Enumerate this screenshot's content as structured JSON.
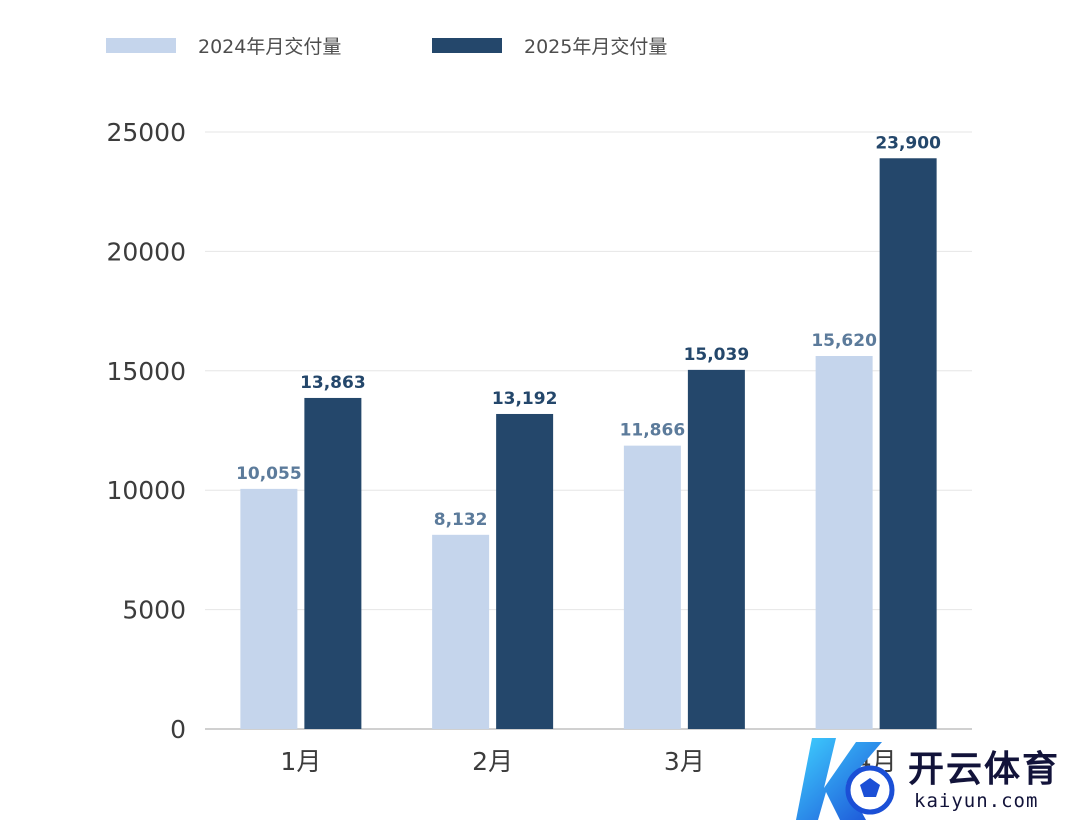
{
  "chart_data": {
    "type": "bar",
    "categories": [
      "1月",
      "2月",
      "3月",
      "4月"
    ],
    "series": [
      {
        "name": "2024年月交付量",
        "values": [
          10055,
          8132,
          11866,
          15620
        ],
        "labels": [
          "10,055",
          "8,132",
          "11,866",
          "15,620"
        ],
        "color": "#c5d5ec"
      },
      {
        "name": "2025年月交付量",
        "values": [
          13863,
          13192,
          15039,
          23900
        ],
        "labels": [
          "13,863",
          "13,192",
          "15,039",
          "23,900"
        ],
        "color": "#24476b"
      }
    ],
    "yticks": [
      "0",
      "5000",
      "10000",
      "15000",
      "20000",
      "25000"
    ],
    "ylim": [
      0,
      25000
    ],
    "grid": true,
    "legend": "top"
  },
  "colors": {
    "light_label": "#5c7b9b",
    "dark_label": "#24476b",
    "axis_text": "#3c3c3c",
    "grid": "#e6e6e6"
  },
  "watermark": {
    "title": "开云体育",
    "subtitle": "kaiyun.com",
    "icon": "k-soccer-logo-icon"
  }
}
